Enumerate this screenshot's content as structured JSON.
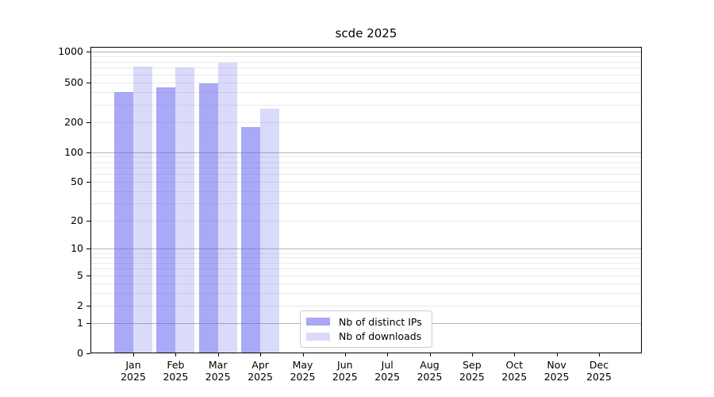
{
  "chart_data": {
    "type": "bar",
    "title": "scde 2025",
    "categories": [
      {
        "month": "Jan",
        "year": "2025"
      },
      {
        "month": "Feb",
        "year": "2025"
      },
      {
        "month": "Mar",
        "year": "2025"
      },
      {
        "month": "Apr",
        "year": "2025"
      },
      {
        "month": "May",
        "year": "2025"
      },
      {
        "month": "Jun",
        "year": "2025"
      },
      {
        "month": "Jul",
        "year": "2025"
      },
      {
        "month": "Aug",
        "year": "2025"
      },
      {
        "month": "Sep",
        "year": "2025"
      },
      {
        "month": "Oct",
        "year": "2025"
      },
      {
        "month": "Nov",
        "year": "2025"
      },
      {
        "month": "Dec",
        "year": "2025"
      }
    ],
    "series": [
      {
        "name": "Nb of distinct IPs",
        "color": "rgba(99,99,237,0.55)",
        "values": [
          400,
          445,
          490,
          177,
          null,
          null,
          null,
          null,
          null,
          null,
          null,
          null
        ]
      },
      {
        "name": "Nb of downloads",
        "color": "rgba(99,99,237,0.24)",
        "values": [
          715,
          700,
          780,
          270,
          null,
          null,
          null,
          null,
          null,
          null,
          null,
          null
        ]
      }
    ],
    "y_axis": {
      "scale": "log10(value+1)",
      "tick_values": [
        1000,
        500,
        200,
        100,
        50,
        20,
        10,
        5,
        2,
        1,
        0
      ],
      "tick_labels": [
        "1000",
        "500",
        "200",
        "100",
        "50",
        "20",
        "10",
        "5",
        "2",
        "1",
        "0"
      ],
      "major_gridlines": [
        1,
        10,
        100,
        1000
      ],
      "minor_gridlines": [
        2,
        3,
        4,
        5,
        6,
        7,
        8,
        9,
        20,
        30,
        40,
        50,
        60,
        70,
        80,
        90,
        200,
        300,
        400,
        500,
        600,
        700,
        800,
        900
      ],
      "range": [
        0,
        1100
      ]
    },
    "legend": {
      "position": "lower center",
      "entries": [
        "Nb of distinct IPs",
        "Nb of downloads"
      ]
    },
    "grid": true
  },
  "colors": {
    "bar_distinct_ips": "rgba(99,99,237,0.55)",
    "bar_downloads": "rgba(99,99,237,0.24)",
    "major_grid": "#b4b4b4",
    "minor_grid": "#e9e9e9",
    "axis": "#000000",
    "legend_border": "#cccccc",
    "background": "#ffffff"
  }
}
